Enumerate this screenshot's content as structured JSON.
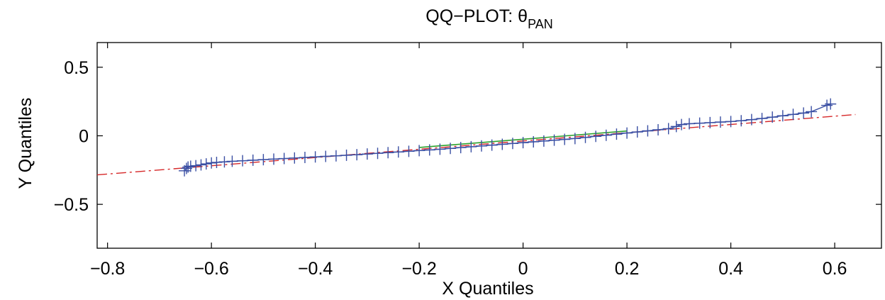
{
  "chart_data": {
    "type": "scatter",
    "title": "QQ−PLOT: θ",
    "title_subscript": "PAN",
    "xlabel": "X Quantiles",
    "ylabel": "Y Quantiles",
    "xlim": [
      -0.82,
      0.69
    ],
    "ylim": [
      -0.82,
      0.68
    ],
    "xticks": [
      -0.8,
      -0.6,
      -0.4,
      -0.2,
      0,
      0.2,
      0.4,
      0.6
    ],
    "xtick_labels": [
      "−0.8",
      "−0.6",
      "−0.4",
      "−0.2",
      "0",
      "0.2",
      "0.4",
      "0.6"
    ],
    "yticks": [
      -0.5,
      0,
      0.5
    ],
    "ytick_labels": [
      "−0.5",
      "0",
      "0.5"
    ],
    "grid": false,
    "legend": "none",
    "reference_line": {
      "style": "dash-dot",
      "color": "#d62728",
      "x": [
        -0.82,
        0.64
      ],
      "y": [
        -0.285,
        0.155
      ]
    },
    "central_segment": {
      "color": "#2ca02c",
      "x": [
        -0.2,
        0.2
      ],
      "y": [
        -0.085,
        0.035
      ]
    },
    "series": [
      {
        "marker": "+",
        "color": "#3a4fa3",
        "connect": true,
        "points": [
          [
            -0.652,
            -0.255
          ],
          [
            -0.648,
            -0.238
          ],
          [
            -0.645,
            -0.228
          ],
          [
            -0.64,
            -0.222
          ],
          [
            -0.63,
            -0.218
          ],
          [
            -0.62,
            -0.212
          ],
          [
            -0.61,
            -0.205
          ],
          [
            -0.6,
            -0.198
          ],
          [
            -0.59,
            -0.194
          ],
          [
            -0.575,
            -0.19
          ],
          [
            -0.56,
            -0.186
          ],
          [
            -0.54,
            -0.182
          ],
          [
            -0.52,
            -0.178
          ],
          [
            -0.5,
            -0.174
          ],
          [
            -0.48,
            -0.17
          ],
          [
            -0.46,
            -0.166
          ],
          [
            -0.44,
            -0.162
          ],
          [
            -0.42,
            -0.158
          ],
          [
            -0.4,
            -0.154
          ],
          [
            -0.38,
            -0.15
          ],
          [
            -0.36,
            -0.146
          ],
          [
            -0.34,
            -0.142
          ],
          [
            -0.32,
            -0.138
          ],
          [
            -0.3,
            -0.133
          ],
          [
            -0.28,
            -0.128
          ],
          [
            -0.26,
            -0.123
          ],
          [
            -0.24,
            -0.118
          ],
          [
            -0.22,
            -0.113
          ],
          [
            -0.2,
            -0.108
          ],
          [
            -0.18,
            -0.103
          ],
          [
            -0.16,
            -0.098
          ],
          [
            -0.14,
            -0.092
          ],
          [
            -0.12,
            -0.086
          ],
          [
            -0.1,
            -0.08
          ],
          [
            -0.08,
            -0.074
          ],
          [
            -0.06,
            -0.068
          ],
          [
            -0.04,
            -0.062
          ],
          [
            -0.02,
            -0.056
          ],
          [
            0,
            -0.05
          ],
          [
            0.02,
            -0.044
          ],
          [
            0.04,
            -0.038
          ],
          [
            0.06,
            -0.032
          ],
          [
            0.08,
            -0.026
          ],
          [
            0.1,
            -0.02
          ],
          [
            0.12,
            -0.012
          ],
          [
            0.14,
            -0.004
          ],
          [
            0.16,
            0.004
          ],
          [
            0.18,
            0.012
          ],
          [
            0.2,
            0.02
          ],
          [
            0.22,
            0.028
          ],
          [
            0.24,
            0.036
          ],
          [
            0.26,
            0.044
          ],
          [
            0.28,
            0.052
          ],
          [
            0.295,
            0.068
          ],
          [
            0.305,
            0.082
          ],
          [
            0.32,
            0.088
          ],
          [
            0.34,
            0.092
          ],
          [
            0.36,
            0.096
          ],
          [
            0.38,
            0.1
          ],
          [
            0.4,
            0.104
          ],
          [
            0.42,
            0.11
          ],
          [
            0.44,
            0.118
          ],
          [
            0.46,
            0.126
          ],
          [
            0.48,
            0.136
          ],
          [
            0.5,
            0.146
          ],
          [
            0.52,
            0.156
          ],
          [
            0.54,
            0.166
          ],
          [
            0.555,
            0.176
          ],
          [
            0.585,
            0.222
          ],
          [
            0.592,
            0.232
          ]
        ]
      }
    ]
  }
}
